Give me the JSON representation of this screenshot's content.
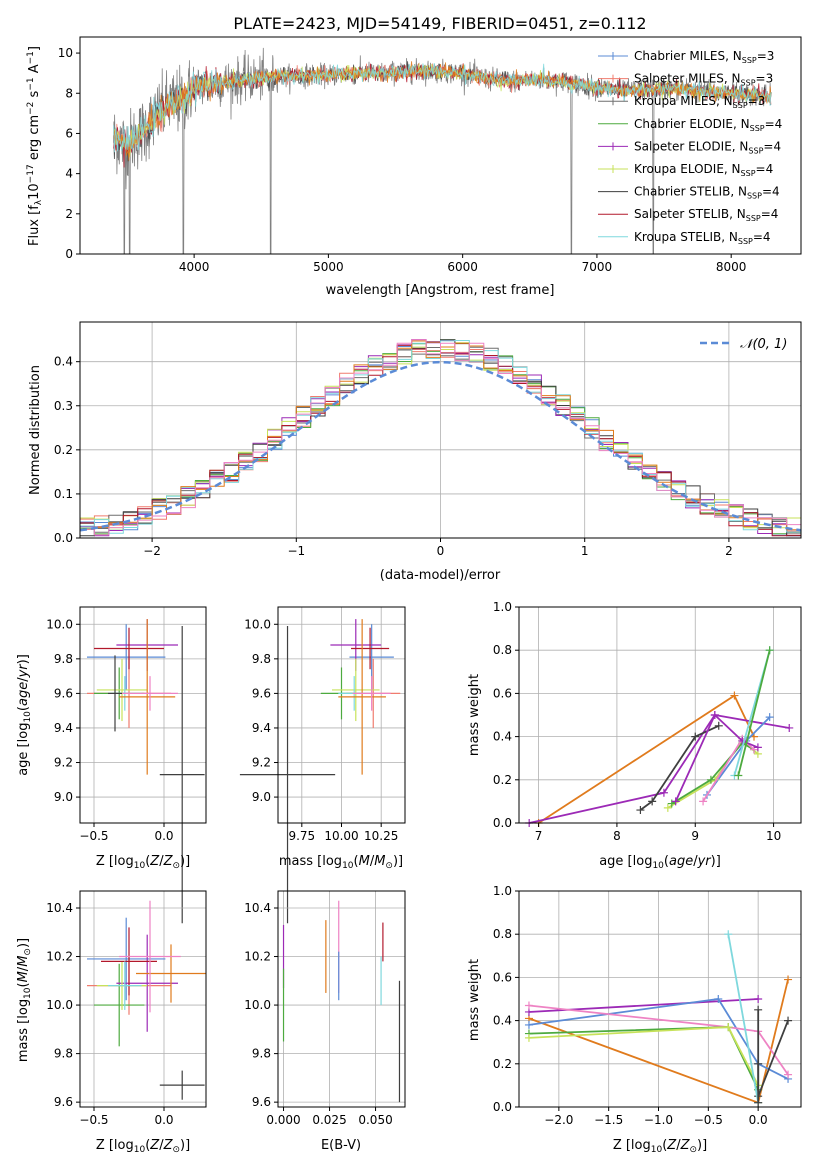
{
  "title": "PLATE=2423, MJD=54149, FIBERID=0451, z=0.112",
  "colors": {
    "chabrier_miles": "#5b8bd6",
    "salpeter_miles": "#f07c6e",
    "kroupa_miles": "#6f6f6f",
    "chabrier_elodie": "#4daa3f",
    "salpeter_elodie": "#9c2ab6",
    "kroupa_elodie": "#c7e25a",
    "chabrier_stelib": "#3f3f3f",
    "salpeter_stelib": "#b2182b",
    "kroupa_stelib": "#7fd8dd",
    "orange": "#e07b1d",
    "pink": "#ee83c4",
    "gauss": "#5b8bd6",
    "data": "#808080",
    "grid": "#b0b0b0"
  },
  "chart_data": [
    {
      "id": "spectrum",
      "type": "line",
      "xlabel": "wavelength [Angstrom, rest frame]",
      "ylabel": "Flux [f_λ10^-17 erg cm^-2 s^-1 A^-1]",
      "xlim": [
        3150,
        8520
      ],
      "ylim": [
        0,
        10.8
      ],
      "xticks": [
        4000,
        5000,
        6000,
        7000,
        8000
      ],
      "yticks": [
        0,
        2,
        4,
        6,
        8,
        10
      ],
      "grid": false,
      "legend_position": "top-right",
      "continuum": {
        "x": [
          3400,
          3500,
          3600,
          3700,
          3800,
          3900,
          4000,
          4200,
          4400,
          4600,
          4800,
          5000,
          5200,
          5400,
          5600,
          5800,
          6000,
          6200,
          6400,
          6600,
          6800,
          7000,
          7200,
          7400,
          7600,
          7800,
          8000,
          8200,
          8300
        ],
        "y": [
          5.8,
          5.4,
          6.0,
          6.7,
          7.4,
          7.6,
          8.3,
          8.5,
          8.7,
          8.8,
          8.9,
          8.9,
          9.0,
          9.0,
          9.1,
          9.1,
          9.0,
          8.7,
          8.6,
          8.7,
          8.5,
          8.3,
          8.1,
          8.2,
          8.2,
          8.1,
          8.0,
          7.9,
          7.8
        ]
      },
      "series": [
        {
          "name": "Chabrier MILES, N_SSP=3",
          "color_key": "chabrier_miles",
          "marker": "+"
        },
        {
          "name": "Salpeter MILES, N_SSP=3",
          "color_key": "salpeter_miles",
          "marker": "+"
        },
        {
          "name": "Kroupa MILES, N_SSP=3",
          "color_key": "kroupa_miles",
          "marker": "+"
        },
        {
          "name": "Chabrier ELODIE, N_SSP=4",
          "color_key": "chabrier_elodie",
          "marker": ""
        },
        {
          "name": "Salpeter ELODIE, N_SSP=4",
          "color_key": "salpeter_elodie",
          "marker": "+"
        },
        {
          "name": "Kroupa ELODIE, N_SSP=4",
          "color_key": "kroupa_elodie",
          "marker": "+"
        },
        {
          "name": "Chabrier STELIB, N_SSP=4",
          "color_key": "chabrier_stelib",
          "marker": ""
        },
        {
          "name": "Salpeter STELIB, N_SSP=4",
          "color_key": "salpeter_stelib",
          "marker": ""
        },
        {
          "name": "Kroupa STELIB, N_SSP=4",
          "color_key": "kroupa_stelib",
          "marker": ""
        }
      ],
      "dips": [
        {
          "x": 3480,
          "depth": 10.8
        },
        {
          "x": 3520,
          "depth": 10.8
        },
        {
          "x": 3920,
          "depth": 10.8
        },
        {
          "x": 4570,
          "depth": 10.8
        },
        {
          "x": 6810,
          "depth": 10.8
        },
        {
          "x": 7420,
          "depth": 10.8
        }
      ]
    },
    {
      "id": "residuals",
      "type": "histogram",
      "xlabel": "(data-model)/error",
      "ylabel": "Normed distribution",
      "xlim": [
        -2.5,
        2.5
      ],
      "ylim": [
        0,
        0.49
      ],
      "xticks": [
        -2,
        -1,
        0,
        1,
        2
      ],
      "yticks": [
        0.0,
        0.1,
        0.2,
        0.3,
        0.4
      ],
      "grid": true,
      "legend": "𝒩(0, 1)",
      "legend_position": "top-right",
      "bins": {
        "start": -2.5,
        "width": 0.1,
        "count": 50
      },
      "reference": "gaussian N(0,1)"
    },
    {
      "id": "age_vs_Z",
      "type": "errorbar",
      "xlabel": "Z [log10(Z/Z_sun)]",
      "ylabel": "age [log10(age/yr)]",
      "xlim": [
        -0.6,
        0.3
      ],
      "ylim": [
        8.85,
        10.1
      ],
      "xticks": [
        -0.5,
        0.0
      ],
      "yticks": [
        9.0,
        9.2,
        9.4,
        9.6,
        9.8,
        10.0
      ],
      "grid": true,
      "points": [
        {
          "color_key": "chabrier_miles",
          "x": -0.27,
          "xerr": 0.28,
          "y": 9.81,
          "yerr": 0.19
        },
        {
          "color_key": "salpeter_miles",
          "x": -0.25,
          "xerr": 0.3,
          "y": 9.6,
          "yerr": 0.2
        },
        {
          "color_key": "chabrier_elodie",
          "x": -0.32,
          "xerr": 0.18,
          "y": 9.6,
          "yerr": 0.15
        },
        {
          "color_key": "salpeter_elodie",
          "x": -0.12,
          "xerr": 0.22,
          "y": 9.88,
          "yerr": 0.15
        },
        {
          "color_key": "kroupa_elodie",
          "x": -0.3,
          "xerr": 0.18,
          "y": 9.62,
          "yerr": 0.18
        },
        {
          "color_key": "chabrier_stelib",
          "x": 0.13,
          "xerr": 0.16,
          "y": 9.13,
          "yerr": 0.86
        },
        {
          "color_key": "salpeter_stelib",
          "x": -0.25,
          "xerr": 0.25,
          "y": 9.86,
          "yerr": 0.12
        },
        {
          "color_key": "kroupa_stelib",
          "x": -0.28,
          "xerr": 0.12,
          "y": 9.6,
          "yerr": 0.1
        },
        {
          "color_key": "orange",
          "x": -0.12,
          "xerr": 0.2,
          "y": 9.58,
          "yerr": 0.45
        },
        {
          "color_key": "pink",
          "x": -0.1,
          "xerr": 0.2,
          "y": 9.6,
          "yerr": 0.1
        },
        {
          "color_key": "chabrier_stelib",
          "x": -0.35,
          "xerr": 0.05,
          "y": 9.6,
          "yerr": 0.22
        }
      ]
    },
    {
      "id": "age_vs_mass",
      "type": "errorbar",
      "xlabel": "mass [log10(M/M_sun)]",
      "ylabel": "",
      "xlim": [
        9.6,
        10.4
      ],
      "ylim": [
        8.85,
        10.1
      ],
      "xticks": [
        9.75,
        10.0,
        10.25
      ],
      "yticks": [
        9.0,
        9.2,
        9.4,
        9.6,
        9.8,
        10.0
      ],
      "grid": true,
      "points": [
        {
          "color_key": "chabrier_miles",
          "x": 10.19,
          "xerr": 0.14,
          "y": 9.81,
          "yerr": 0.19
        },
        {
          "color_key": "salpeter_miles",
          "x": 10.2,
          "xerr": 0.17,
          "y": 9.6,
          "yerr": 0.2
        },
        {
          "color_key": "chabrier_elodie",
          "x": 10.0,
          "xerr": 0.13,
          "y": 9.6,
          "yerr": 0.15
        },
        {
          "color_key": "salpeter_elodie",
          "x": 10.09,
          "xerr": 0.16,
          "y": 9.88,
          "yerr": 0.15
        },
        {
          "color_key": "kroupa_elodie",
          "x": 10.09,
          "xerr": 0.15,
          "y": 9.62,
          "yerr": 0.18
        },
        {
          "color_key": "chabrier_stelib",
          "x": 9.66,
          "xerr": 0.3,
          "y": 9.13,
          "yerr": 0.86
        },
        {
          "color_key": "salpeter_stelib",
          "x": 10.18,
          "xerr": 0.12,
          "y": 9.86,
          "yerr": 0.12
        },
        {
          "color_key": "kroupa_stelib",
          "x": 10.08,
          "xerr": 0.1,
          "y": 9.6,
          "yerr": 0.1
        },
        {
          "color_key": "orange",
          "x": 10.13,
          "xerr": 0.15,
          "y": 9.58,
          "yerr": 0.45
        },
        {
          "color_key": "pink",
          "x": 10.19,
          "xerr": 0.12,
          "y": 9.6,
          "yerr": 0.1
        }
      ]
    },
    {
      "id": "weight_vs_age",
      "type": "line",
      "xlabel": "age [log10(age/yr)]",
      "ylabel": "mass weight",
      "xlim": [
        6.75,
        10.35
      ],
      "ylim": [
        0,
        1
      ],
      "xticks": [
        7,
        8,
        9,
        10
      ],
      "yticks": [
        0.0,
        0.2,
        0.4,
        0.6,
        0.8,
        1.0
      ],
      "grid": true,
      "series": [
        {
          "color_key": "orange",
          "x": [
            7.0,
            9.5,
            9.75
          ],
          "y": [
            0.0,
            0.59,
            0.4
          ]
        },
        {
          "color_key": "salpeter_elodie",
          "x": [
            6.88,
            8.6,
            9.25,
            10.2
          ],
          "y": [
            0.0,
            0.14,
            0.5,
            0.44
          ]
        },
        {
          "color_key": "chabrier_stelib",
          "x": [
            8.3,
            8.45,
            9.0,
            9.3
          ],
          "y": [
            0.06,
            0.1,
            0.4,
            0.45
          ]
        },
        {
          "color_key": "chabrier_miles",
          "x": [
            9.15,
            9.65,
            9.95
          ],
          "y": [
            0.13,
            0.38,
            0.49
          ]
        },
        {
          "color_key": "kroupa_elodie",
          "x": [
            8.65,
            9.25,
            9.6,
            9.8
          ],
          "y": [
            0.07,
            0.2,
            0.38,
            0.32
          ]
        },
        {
          "color_key": "chabrier_elodie",
          "x": [
            8.7,
            9.2,
            9.6,
            9.75
          ],
          "y": [
            0.09,
            0.2,
            0.37,
            0.34
          ]
        },
        {
          "color_key": "pink",
          "x": [
            9.1,
            9.6,
            9.75
          ],
          "y": [
            0.1,
            0.39,
            0.34
          ]
        },
        {
          "color_key": "salpeter_elodie",
          "x": [
            8.75,
            9.25,
            9.6,
            9.8
          ],
          "y": [
            0.1,
            0.5,
            0.38,
            0.35
          ]
        },
        {
          "color_key": "kroupa_stelib",
          "x": [
            9.5,
            9.95
          ],
          "y": [
            0.22,
            0.8
          ]
        },
        {
          "color_key": "chabrier_elodie",
          "x": [
            9.55,
            9.95
          ],
          "y": [
            0.22,
            0.8
          ]
        }
      ]
    },
    {
      "id": "mass_vs_Z",
      "type": "errorbar",
      "xlabel": "Z [log10(Z/Z_sun)]",
      "ylabel": "mass [log10(M/M_sun)]",
      "xlim": [
        -0.6,
        0.3
      ],
      "ylim": [
        9.58,
        10.47
      ],
      "xticks": [
        -0.5,
        0.0
      ],
      "yticks": [
        9.6,
        9.8,
        10.0,
        10.2,
        10.4
      ],
      "grid": true,
      "points": [
        {
          "color_key": "chabrier_miles",
          "x": -0.27,
          "xerr": 0.28,
          "y": 10.19,
          "yerr": 0.17
        },
        {
          "color_key": "salpeter_miles",
          "x": -0.25,
          "xerr": 0.3,
          "y": 10.08,
          "yerr": 0.12
        },
        {
          "color_key": "chabrier_elodie",
          "x": -0.32,
          "xerr": 0.18,
          "y": 10.0,
          "yerr": 0.17
        },
        {
          "color_key": "salpeter_elodie",
          "x": -0.12,
          "xerr": 0.22,
          "y": 10.09,
          "yerr": 0.2
        },
        {
          "color_key": "kroupa_elodie",
          "x": -0.3,
          "xerr": 0.18,
          "y": 10.08,
          "yerr": 0.1
        },
        {
          "color_key": "chabrier_stelib",
          "x": 0.13,
          "xerr": 0.16,
          "y": 9.67,
          "yerr": 0.06
        },
        {
          "color_key": "salpeter_stelib",
          "x": -0.25,
          "xerr": 0.2,
          "y": 10.18,
          "yerr": 0.14
        },
        {
          "color_key": "kroupa_stelib",
          "x": -0.28,
          "xerr": 0.12,
          "y": 10.08,
          "yerr": 0.1
        },
        {
          "color_key": "orange",
          "x": 0.05,
          "xerr": 0.25,
          "y": 10.13,
          "yerr": 0.12
        },
        {
          "color_key": "pink",
          "x": -0.1,
          "xerr": 0.22,
          "y": 10.2,
          "yerr": 0.23
        }
      ]
    },
    {
      "id": "mass_vs_EBV",
      "type": "errorbar",
      "xlabel": "E(B-V)",
      "ylabel": "",
      "xlim": [
        -0.003,
        0.066
      ],
      "ylim": [
        9.58,
        10.47
      ],
      "xticks": [
        0.0,
        0.025,
        0.05
      ],
      "xticklabels": [
        "0.000",
        "0.025",
        "0.050"
      ],
      "yticks": [
        9.6,
        9.8,
        10.0,
        10.2,
        10.4
      ],
      "grid": true,
      "points": [
        {
          "color_key": "salpeter_elodie",
          "x": 0.0,
          "y": 10.2,
          "yerr": 0.13
        },
        {
          "color_key": "chabrier_elodie",
          "x": 0.0,
          "y": 10.0,
          "yerr": 0.15
        },
        {
          "color_key": "orange",
          "x": 0.023,
          "y": 10.2,
          "yerr": 0.15
        },
        {
          "color_key": "pink",
          "x": 0.03,
          "y": 10.24,
          "yerr": 0.19
        },
        {
          "color_key": "chabrier_miles",
          "x": 0.03,
          "y": 10.12,
          "yerr": 0.1
        },
        {
          "color_key": "salpeter_stelib",
          "x": 0.054,
          "y": 10.26,
          "yerr": 0.08
        },
        {
          "color_key": "kroupa_stelib",
          "x": 0.053,
          "y": 10.1,
          "yerr": 0.1
        },
        {
          "color_key": "chabrier_stelib",
          "x": 0.063,
          "y": 9.85,
          "yerr": 0.25
        }
      ]
    },
    {
      "id": "weight_vs_Z",
      "type": "line",
      "xlabel": "Z [log10(Z/Z_sun)]",
      "ylabel": "mass weight",
      "xlim": [
        -2.4,
        0.43
      ],
      "ylim": [
        0,
        1
      ],
      "xticks": [
        -2.0,
        -1.5,
        -1.0,
        -0.5,
        0.0
      ],
      "yticks": [
        0.0,
        0.2,
        0.4,
        0.6,
        0.8,
        1.0
      ],
      "grid": true,
      "series": [
        {
          "color_key": "orange",
          "x": [
            -2.3,
            0.0,
            0.3
          ],
          "y": [
            0.41,
            0.02,
            0.59
          ]
        },
        {
          "color_key": "salpeter_elodie",
          "x": [
            -2.3,
            0.0
          ],
          "y": [
            0.44,
            0.5
          ]
        },
        {
          "color_key": "chabrier_miles",
          "x": [
            -2.3,
            -0.4,
            0.0,
            0.3
          ],
          "y": [
            0.38,
            0.5,
            0.2,
            0.13
          ]
        },
        {
          "color_key": "pink",
          "x": [
            -2.3,
            -0.3,
            0.0,
            0.3
          ],
          "y": [
            0.47,
            0.37,
            0.35,
            0.15
          ]
        },
        {
          "color_key": "chabrier_elodie",
          "x": [
            -2.3,
            -0.3,
            0.0
          ],
          "y": [
            0.34,
            0.37,
            0.08
          ]
        },
        {
          "color_key": "kroupa_elodie",
          "x": [
            -2.3,
            -0.3,
            0.0
          ],
          "y": [
            0.32,
            0.37,
            0.1
          ]
        },
        {
          "color_key": "chabrier_stelib",
          "x": [
            0.0,
            0.0,
            0.3
          ],
          "y": [
            0.45,
            0.05,
            0.4
          ]
        },
        {
          "color_key": "kroupa_stelib",
          "x": [
            -0.3,
            0.0
          ],
          "y": [
            0.8,
            0.02
          ]
        },
        {
          "color_key": "chabrier_stelib",
          "x": [
            0.0,
            0.0
          ],
          "y": [
            0.2,
            0.02
          ]
        }
      ]
    }
  ]
}
